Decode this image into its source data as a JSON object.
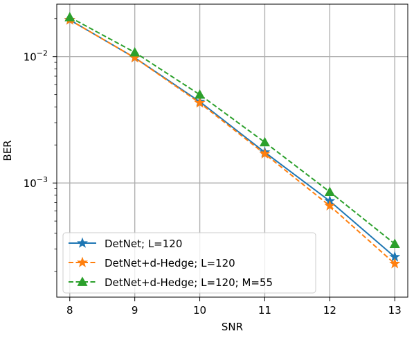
{
  "chart_data": {
    "type": "line",
    "xlabel": "SNR",
    "ylabel": "BER",
    "xlim": [
      7.8,
      13.2
    ],
    "ylim": [
      0.000125,
      0.026
    ],
    "yscale": "log",
    "grid": true,
    "legend_position": "lower-left",
    "x_ticks": [
      {
        "value": 8,
        "label": "8"
      },
      {
        "value": 9,
        "label": "9"
      },
      {
        "value": 10,
        "label": "10"
      },
      {
        "value": 11,
        "label": "11"
      },
      {
        "value": 12,
        "label": "12"
      },
      {
        "value": 13,
        "label": "13"
      }
    ],
    "y_ticks": [
      {
        "value": 0.01,
        "mantissa": "10",
        "exponent": "−2"
      },
      {
        "value": 0.001,
        "mantissa": "10",
        "exponent": "−3"
      }
    ],
    "x": [
      8,
      9,
      10,
      11,
      12,
      13
    ],
    "series": [
      {
        "name": "DetNet; L=120",
        "values": [
          0.0195,
          0.0098,
          0.0044,
          0.00175,
          0.00072,
          0.00026
        ],
        "color": "#1f77b4",
        "dash": "solid",
        "marker": "star"
      },
      {
        "name": "DetNet+d-Hedge; L=120",
        "values": [
          0.0195,
          0.0098,
          0.0043,
          0.0017,
          0.00066,
          0.00023
        ],
        "color": "#ff7f0e",
        "dash": "dashed",
        "marker": "star"
      },
      {
        "name": "DetNet+d-Hedge; L=120; M=55",
        "values": [
          0.0205,
          0.0108,
          0.005,
          0.0021,
          0.00085,
          0.00033
        ],
        "color": "#2ca02c",
        "dash": "dashed",
        "marker": "triangle"
      }
    ]
  }
}
